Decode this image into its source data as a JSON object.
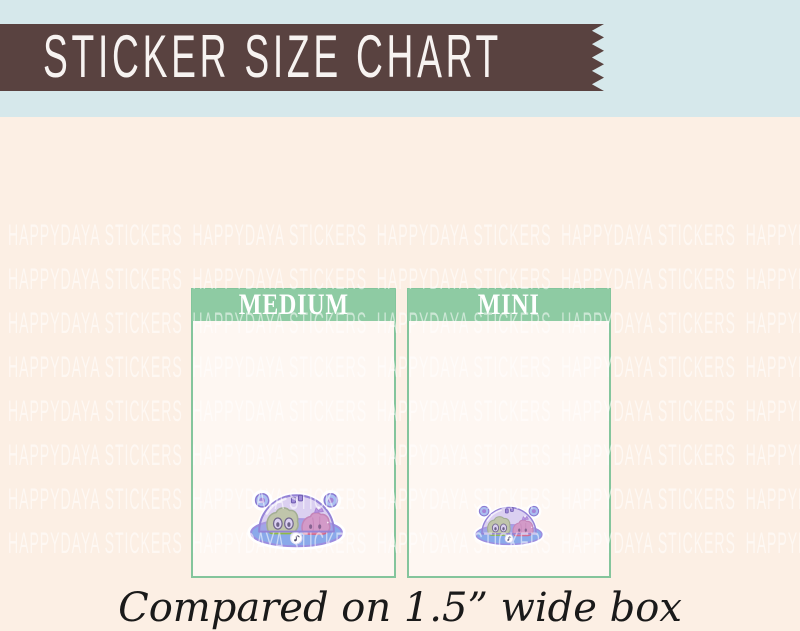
{
  "banner": {
    "title": "STICKER SIZE CHART"
  },
  "size_chart": {
    "columns": [
      {
        "label": "MEDIUM",
        "sticker_icon": "bears-under-dome-sticker-medium"
      },
      {
        "label": "MINI",
        "sticker_icon": "bears-under-dome-sticker-mini"
      }
    ]
  },
  "caption": {
    "text": "Compared on 1.5” wide box"
  },
  "watermark": {
    "text": "HAPPYDAYA STICKERS",
    "rows": 8,
    "repeats_per_row": 6
  },
  "colors": {
    "top_band": "#d6e8eb",
    "banner_bg": "#594240",
    "banner_text": "#f7f3f1",
    "content_bg": "#fcefe4",
    "box_header_bg": "#8ecba3",
    "box_border": "#84c59c",
    "box_body_bg": "rgba(255,255,255,0.5)",
    "watermark_color": "rgba(255,255,255,0.55)",
    "caption_color": "#1a1a1a",
    "sticker_dome": "#b7a1e4",
    "sticker_base": "#8aa9ea",
    "sticker_green_bear": "#c9e972",
    "sticker_pink_bear": "#ef93ac"
  }
}
